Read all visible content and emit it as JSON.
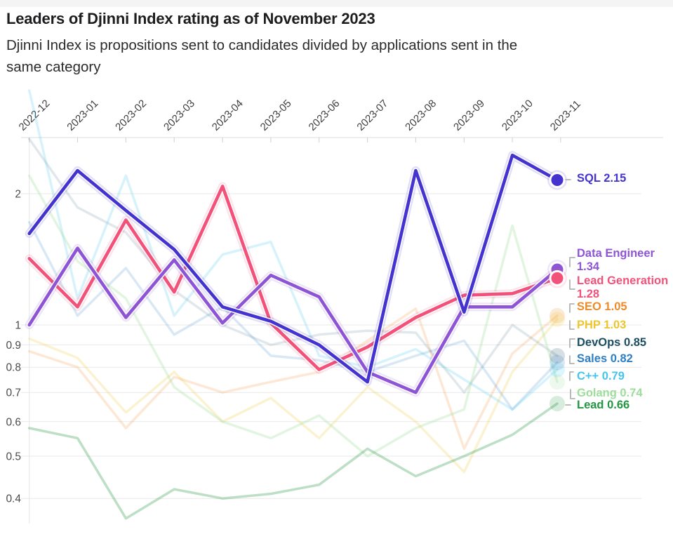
{
  "page": {
    "title": "Leaders of Djinni Index rating as of November 2023",
    "subtitle_lines": [
      "Djinni Index is propositions sent to candidates divided by applications sent in the",
      "same category"
    ]
  },
  "chart_data": {
    "type": "line",
    "title": "Leaders of Djinni Index rating as of November 2023",
    "x_categories": [
      "2022-12",
      "2023-01",
      "2023-02",
      "2023-03",
      "2023-04",
      "2023-05",
      "2023-06",
      "2023-07",
      "2023-08",
      "2023-09",
      "2023-10",
      "2023-11"
    ],
    "y_scale": "log",
    "y_ticks": [
      2,
      1,
      0.9,
      0.8,
      0.7,
      0.6,
      0.5,
      0.4
    ],
    "grid": "horizontal",
    "legend_position": "right-of-line-ends",
    "series": [
      {
        "name": "SQL",
        "color": "#4533cf",
        "emphasis": true,
        "final": 2.15,
        "legend_lines": [
          "SQL 2.15"
        ],
        "values": [
          1.62,
          2.26,
          1.83,
          1.49,
          1.1,
          1.02,
          0.9,
          0.74,
          2.26,
          1.07,
          2.45,
          2.15
        ]
      },
      {
        "name": "Data Engineer",
        "color": "#8e54d6",
        "emphasis": true,
        "final": 1.34,
        "legend_lines": [
          "Data Engineer",
          "1.34"
        ],
        "values": [
          1.0,
          1.5,
          1.04,
          1.41,
          1.01,
          1.3,
          1.16,
          0.78,
          0.7,
          1.1,
          1.1,
          1.34
        ]
      },
      {
        "name": "Lead Generation",
        "color": "#f2517a",
        "emphasis": true,
        "final": 1.28,
        "legend_lines": [
          "Lead Generation",
          "1.28"
        ],
        "values": [
          1.42,
          1.1,
          1.74,
          1.19,
          2.08,
          1.01,
          0.79,
          0.89,
          1.04,
          1.17,
          1.18,
          1.28
        ]
      },
      {
        "name": "SEO",
        "color": "#ee8b29",
        "emphasis": false,
        "final": 1.05,
        "legend_lines": [
          "SEO 1.05"
        ],
        "values": [
          0.87,
          0.8,
          0.58,
          0.76,
          0.7,
          0.74,
          0.78,
          0.92,
          1.09,
          0.52,
          0.86,
          1.05
        ]
      },
      {
        "name": "PHP",
        "color": "#eec52e",
        "emphasis": false,
        "final": 1.03,
        "legend_lines": [
          "PHP 1.03"
        ],
        "values": [
          0.93,
          0.84,
          0.63,
          0.78,
          0.6,
          0.68,
          0.55,
          0.72,
          0.6,
          0.46,
          0.78,
          1.03
        ]
      },
      {
        "name": "DevOps",
        "color": "#1b4e63",
        "emphasis": false,
        "final": 0.85,
        "legend_lines": [
          "DevOps 0.85"
        ],
        "values": [
          2.67,
          1.86,
          1.63,
          1.2,
          1.0,
          0.9,
          0.95,
          0.97,
          0.96,
          0.7,
          1.0,
          0.85
        ]
      },
      {
        "name": "Sales",
        "color": "#2d7fc6",
        "emphasis": false,
        "final": 0.82,
        "legend_lines": [
          "Sales 0.82"
        ],
        "values": [
          1.72,
          1.05,
          1.35,
          0.95,
          1.1,
          0.85,
          0.83,
          0.78,
          0.85,
          0.92,
          0.64,
          0.82
        ]
      },
      {
        "name": "C++",
        "color": "#45c5ec",
        "emphasis": false,
        "final": 0.79,
        "legend_lines": [
          "C++ 0.79"
        ],
        "values": [
          3.45,
          1.15,
          2.2,
          1.05,
          1.45,
          1.55,
          0.85,
          0.8,
          0.88,
          0.75,
          0.64,
          0.79
        ]
      },
      {
        "name": "Golang",
        "color": "#9edd9b",
        "emphasis": false,
        "final": 0.74,
        "legend_lines": [
          "Golang 0.74"
        ],
        "values": [
          2.2,
          1.4,
          1.15,
          0.72,
          0.6,
          0.55,
          0.62,
          0.5,
          0.58,
          0.64,
          1.69,
          0.74
        ]
      },
      {
        "name": "Lead",
        "color": "#229640",
        "emphasis": false,
        "final": 0.66,
        "legend_lines": [
          "Lead 0.66"
        ],
        "values": [
          0.58,
          0.55,
          0.36,
          0.42,
          0.4,
          0.41,
          0.43,
          0.52,
          0.45,
          0.5,
          0.56,
          0.66
        ]
      }
    ]
  }
}
